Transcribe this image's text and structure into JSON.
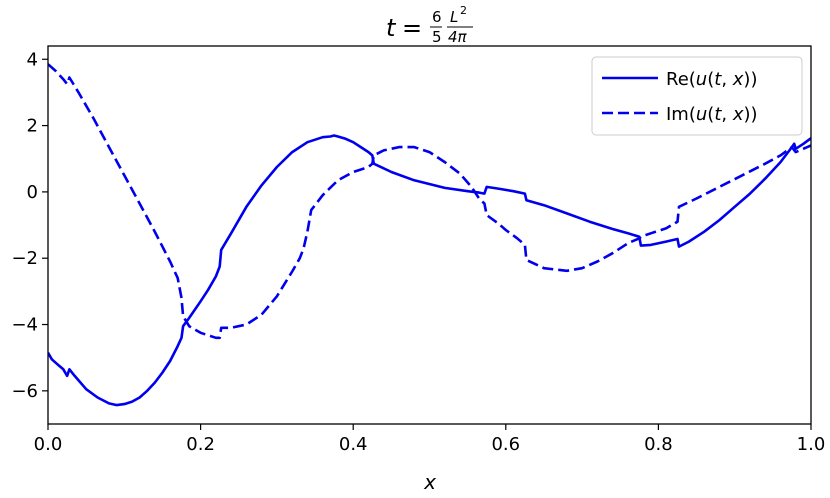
{
  "chart_data": {
    "type": "line",
    "title": {
      "var": "t",
      "eq": "=",
      "frac1_num": "6",
      "frac1_den": "5",
      "frac2_num": "L",
      "frac2_num_exp": "2",
      "frac2_den": "4π"
    },
    "xlabel": "x",
    "ylabel": "",
    "xlim": [
      0.0,
      1.0
    ],
    "ylim": [
      -7.0,
      4.4
    ],
    "x_ticks": [
      0.0,
      0.2,
      0.4,
      0.6,
      0.8,
      1.0
    ],
    "x_tick_labels": [
      "0.0",
      "0.2",
      "0.4",
      "0.6",
      "0.8",
      "1.0"
    ],
    "y_ticks": [
      4,
      2,
      0,
      -2,
      -4,
      -6
    ],
    "y_tick_labels": [
      "4",
      "2",
      "0",
      "−2",
      "−4",
      "−6"
    ],
    "grid": false,
    "legend_position": "top-right",
    "series": [
      {
        "name": "Re(u(t, x))",
        "legend_parts": [
          "Re(",
          "u",
          "(",
          "t",
          ", ",
          "x",
          "))"
        ],
        "color": "#0000ee",
        "style": "solid",
        "points": [
          [
            0.0,
            -4.85
          ],
          [
            0.005,
            -5.05
          ],
          [
            0.01,
            -5.15
          ],
          [
            0.015,
            -5.25
          ],
          [
            0.02,
            -5.35
          ],
          [
            0.025,
            -5.55
          ],
          [
            0.028,
            -5.35
          ],
          [
            0.035,
            -5.55
          ],
          [
            0.05,
            -5.95
          ],
          [
            0.065,
            -6.2
          ],
          [
            0.08,
            -6.38
          ],
          [
            0.09,
            -6.43
          ],
          [
            0.1,
            -6.4
          ],
          [
            0.11,
            -6.33
          ],
          [
            0.12,
            -6.2
          ],
          [
            0.13,
            -6.0
          ],
          [
            0.14,
            -5.75
          ],
          [
            0.15,
            -5.45
          ],
          [
            0.16,
            -5.1
          ],
          [
            0.17,
            -4.65
          ],
          [
            0.175,
            -4.4
          ],
          [
            0.177,
            -4.05
          ],
          [
            0.185,
            -3.8
          ],
          [
            0.2,
            -3.3
          ],
          [
            0.21,
            -2.95
          ],
          [
            0.22,
            -2.55
          ],
          [
            0.225,
            -2.25
          ],
          [
            0.227,
            -1.75
          ],
          [
            0.24,
            -1.25
          ],
          [
            0.26,
            -0.45
          ],
          [
            0.28,
            0.2
          ],
          [
            0.3,
            0.75
          ],
          [
            0.32,
            1.2
          ],
          [
            0.34,
            1.5
          ],
          [
            0.36,
            1.65
          ],
          [
            0.37,
            1.67
          ],
          [
            0.375,
            1.7
          ],
          [
            0.38,
            1.67
          ],
          [
            0.39,
            1.6
          ],
          [
            0.4,
            1.5
          ],
          [
            0.41,
            1.35
          ],
          [
            0.42,
            1.2
          ],
          [
            0.425,
            1.1
          ],
          [
            0.427,
            0.85
          ],
          [
            0.45,
            0.6
          ],
          [
            0.48,
            0.35
          ],
          [
            0.52,
            0.12
          ],
          [
            0.55,
            0.02
          ],
          [
            0.565,
            -0.02
          ],
          [
            0.572,
            -0.05
          ],
          [
            0.575,
            0.15
          ],
          [
            0.59,
            0.1
          ],
          [
            0.61,
            0.02
          ],
          [
            0.625,
            -0.05
          ],
          [
            0.627,
            -0.25
          ],
          [
            0.65,
            -0.4
          ],
          [
            0.68,
            -0.65
          ],
          [
            0.71,
            -0.9
          ],
          [
            0.74,
            -1.12
          ],
          [
            0.76,
            -1.25
          ],
          [
            0.775,
            -1.35
          ],
          [
            0.777,
            -1.62
          ],
          [
            0.79,
            -1.6
          ],
          [
            0.81,
            -1.5
          ],
          [
            0.825,
            -1.42
          ],
          [
            0.827,
            -1.65
          ],
          [
            0.84,
            -1.5
          ],
          [
            0.86,
            -1.2
          ],
          [
            0.88,
            -0.85
          ],
          [
            0.9,
            -0.45
          ],
          [
            0.92,
            -0.05
          ],
          [
            0.94,
            0.4
          ],
          [
            0.96,
            0.9
          ],
          [
            0.975,
            1.35
          ],
          [
            0.978,
            1.45
          ],
          [
            0.98,
            1.3
          ],
          [
            0.99,
            1.45
          ],
          [
            1.0,
            1.62
          ]
        ]
      },
      {
        "name": "Im(u(t, x))",
        "legend_parts": [
          "Im(",
          "u",
          "(",
          "t",
          ", ",
          "x",
          "))"
        ],
        "color": "#0000ee",
        "style": "dashed",
        "points": [
          [
            0.0,
            3.85
          ],
          [
            0.01,
            3.65
          ],
          [
            0.02,
            3.4
          ],
          [
            0.025,
            3.25
          ],
          [
            0.028,
            3.45
          ],
          [
            0.04,
            3.0
          ],
          [
            0.06,
            2.2
          ],
          [
            0.08,
            1.35
          ],
          [
            0.1,
            0.5
          ],
          [
            0.12,
            -0.35
          ],
          [
            0.14,
            -1.2
          ],
          [
            0.16,
            -2.1
          ],
          [
            0.17,
            -2.6
          ],
          [
            0.175,
            -3.2
          ],
          [
            0.177,
            -3.75
          ],
          [
            0.185,
            -4.05
          ],
          [
            0.2,
            -4.25
          ],
          [
            0.22,
            -4.4
          ],
          [
            0.225,
            -4.4
          ],
          [
            0.227,
            -4.1
          ],
          [
            0.24,
            -4.1
          ],
          [
            0.26,
            -4.0
          ],
          [
            0.28,
            -3.7
          ],
          [
            0.3,
            -3.15
          ],
          [
            0.32,
            -2.4
          ],
          [
            0.33,
            -2.0
          ],
          [
            0.335,
            -1.7
          ],
          [
            0.34,
            -1.2
          ],
          [
            0.345,
            -0.55
          ],
          [
            0.36,
            -0.1
          ],
          [
            0.38,
            0.35
          ],
          [
            0.4,
            0.6
          ],
          [
            0.42,
            0.75
          ],
          [
            0.425,
            0.85
          ],
          [
            0.427,
            1.1
          ],
          [
            0.44,
            1.25
          ],
          [
            0.46,
            1.35
          ],
          [
            0.48,
            1.35
          ],
          [
            0.5,
            1.2
          ],
          [
            0.52,
            0.9
          ],
          [
            0.54,
            0.55
          ],
          [
            0.555,
            0.15
          ],
          [
            0.565,
            -0.2
          ],
          [
            0.572,
            -0.35
          ],
          [
            0.575,
            -0.7
          ],
          [
            0.59,
            -0.95
          ],
          [
            0.6,
            -1.15
          ],
          [
            0.615,
            -1.4
          ],
          [
            0.625,
            -1.6
          ],
          [
            0.627,
            -2.05
          ],
          [
            0.65,
            -2.3
          ],
          [
            0.68,
            -2.38
          ],
          [
            0.7,
            -2.3
          ],
          [
            0.72,
            -2.1
          ],
          [
            0.74,
            -1.85
          ],
          [
            0.76,
            -1.55
          ],
          [
            0.775,
            -1.4
          ],
          [
            0.777,
            -1.35
          ],
          [
            0.79,
            -1.25
          ],
          [
            0.81,
            -1.1
          ],
          [
            0.825,
            -0.9
          ],
          [
            0.827,
            -0.45
          ],
          [
            0.85,
            -0.2
          ],
          [
            0.88,
            0.15
          ],
          [
            0.91,
            0.5
          ],
          [
            0.94,
            0.85
          ],
          [
            0.96,
            1.1
          ],
          [
            0.975,
            1.35
          ],
          [
            0.98,
            1.2
          ],
          [
            1.0,
            1.4
          ]
        ]
      }
    ]
  }
}
